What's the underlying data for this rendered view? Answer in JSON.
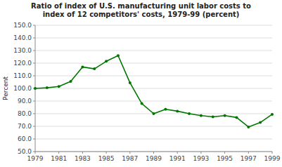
{
  "chart_data": {
    "type": "line",
    "title": "Ratio of index of U.S. manufacturing unit labor costs to\nindex of 12 competitors' costs, 1979-99 (percent)",
    "y_label": "Percent",
    "x": [
      1979,
      1980,
      1981,
      1982,
      1983,
      1984,
      1985,
      1986,
      1987,
      1988,
      1989,
      1990,
      1991,
      1992,
      1993,
      1994,
      1995,
      1996,
      1997,
      1998,
      1999
    ],
    "values": [
      100.0,
      100.5,
      101.5,
      105.5,
      117.0,
      115.5,
      121.5,
      126.0,
      104.5,
      88.0,
      80.0,
      83.5,
      82.0,
      80.0,
      78.5,
      77.5,
      78.5,
      77.0,
      69.5,
      73.0,
      79.5
    ],
    "color": "#007700",
    "marker": "circle",
    "xlim": [
      1979,
      1999
    ],
    "xticks": [
      1979,
      1981,
      1983,
      1985,
      1987,
      1989,
      1991,
      1993,
      1995,
      1997,
      1999
    ],
    "ylim": [
      50,
      150
    ],
    "yticks": [
      {
        "value": 50,
        "label": "50.0"
      },
      {
        "value": 60,
        "label": "60.0"
      },
      {
        "value": 70,
        "label": "70.0"
      },
      {
        "value": 80,
        "label": "80.0"
      },
      {
        "value": 90,
        "label": "90.0"
      },
      {
        "value": 100,
        "label": "100.0"
      },
      {
        "value": 110,
        "label": "110.0"
      },
      {
        "value": 120,
        "label": "120.0"
      },
      {
        "value": 130,
        "label": "130.0"
      },
      {
        "value": 140,
        "label": "140.0"
      },
      {
        "value": 150,
        "label": "150.0"
      }
    ],
    "grid": true
  }
}
